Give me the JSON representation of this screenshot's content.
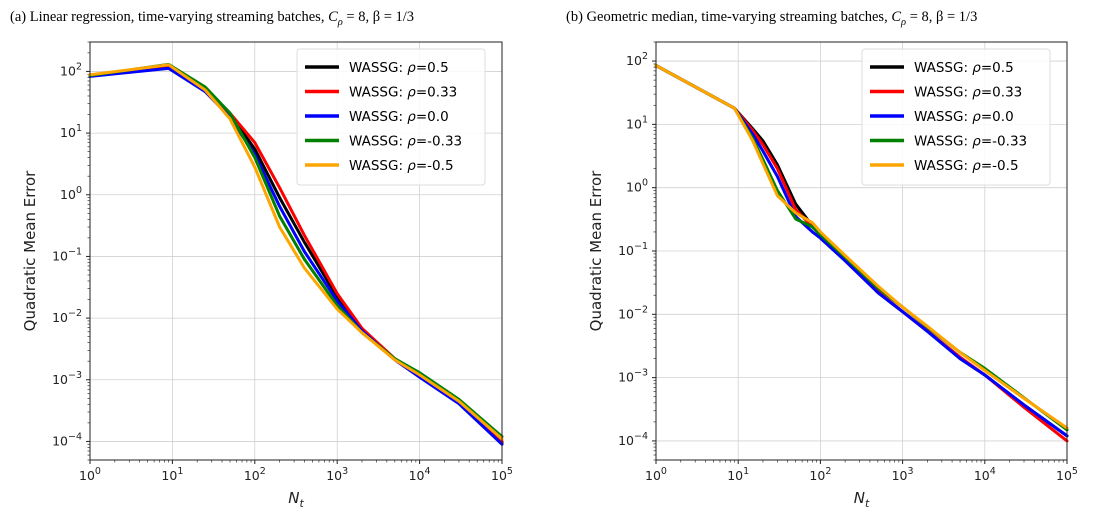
{
  "chart_data": [
    {
      "type": "line",
      "title": "(a) Linear regression, time-varying streaming batches, C_ρ = 8, β = 1/3",
      "xlabel": "N_t",
      "ylabel": "Quadratic Mean Error",
      "xscale": "log",
      "yscale": "log",
      "xlim": [
        1,
        100000
      ],
      "ylim": [
        5e-05,
        300
      ],
      "xticks": [
        "10^0",
        "10^1",
        "10^2",
        "10^3",
        "10^4",
        "10^5"
      ],
      "yticks": [
        "10^-4",
        "10^-3",
        "10^-2",
        "10^-1",
        "10^0",
        "10^1",
        "10^2"
      ],
      "grid": true,
      "legend_position": "upper right",
      "series": [
        {
          "name": "WASSG: ρ=0.5",
          "color": "#000000",
          "x": [
            1,
            9,
            25,
            50,
            100,
            200,
            400,
            1000,
            2000,
            5000,
            10000,
            30000,
            100000
          ],
          "y": [
            85,
            122,
            52,
            20,
            5.5,
            0.9,
            0.17,
            0.022,
            0.0065,
            0.0022,
            0.0012,
            0.00042,
            9.5e-05
          ]
        },
        {
          "name": "WASSG: ρ=0.33",
          "color": "#ff0000",
          "x": [
            1,
            9,
            25,
            50,
            100,
            200,
            400,
            1000,
            2000,
            5000,
            10000,
            30000,
            100000
          ],
          "y": [
            87,
            125,
            53,
            21,
            7.0,
            1.3,
            0.22,
            0.025,
            0.0068,
            0.0022,
            0.0012,
            0.00043,
            0.0001
          ]
        },
        {
          "name": "WASSG: ρ=0.0",
          "color": "#0000ff",
          "x": [
            1,
            9,
            25,
            50,
            100,
            200,
            400,
            1000,
            2000,
            5000,
            10000,
            30000,
            100000
          ],
          "y": [
            83,
            112,
            47,
            18,
            4.5,
            0.65,
            0.12,
            0.019,
            0.0062,
            0.0021,
            0.0011,
            0.00041,
            9e-05
          ]
        },
        {
          "name": "WASSG: ρ=-0.33",
          "color": "#008000",
          "x": [
            1,
            9,
            25,
            50,
            100,
            200,
            400,
            1000,
            2000,
            5000,
            10000,
            30000,
            100000
          ],
          "y": [
            86,
            130,
            56,
            21,
            4.0,
            0.45,
            0.09,
            0.016,
            0.0058,
            0.0022,
            0.0013,
            0.00048,
            0.00012
          ]
        },
        {
          "name": "WASSG: ρ=-0.5",
          "color": "#ffa500",
          "x": [
            1,
            9,
            25,
            50,
            100,
            200,
            400,
            1000,
            2000,
            5000,
            10000,
            30000,
            100000
          ],
          "y": [
            88,
            128,
            50,
            17,
            2.8,
            0.3,
            0.065,
            0.014,
            0.0058,
            0.0021,
            0.0012,
            0.00045,
            0.00011
          ]
        }
      ]
    },
    {
      "type": "line",
      "title": "(b) Geometric median, time-varying streaming batches, C_ρ = 8, β = 1/3",
      "xlabel": "N_t",
      "ylabel": "Quadratic Mean Error",
      "xscale": "log",
      "yscale": "log",
      "xlim": [
        1,
        100000
      ],
      "ylim": [
        5e-05,
        200
      ],
      "xticks": [
        "10^0",
        "10^1",
        "10^2",
        "10^3",
        "10^4",
        "10^5"
      ],
      "yticks": [
        "10^-4",
        "10^-3",
        "10^-2",
        "10^-1",
        "10^0",
        "10^1",
        "10^2"
      ],
      "grid": true,
      "legend_position": "upper right",
      "series": [
        {
          "name": "WASSG: ρ=0.5",
          "color": "#000000",
          "x": [
            1,
            9,
            15,
            20,
            30,
            50,
            80,
            100,
            200,
            500,
            1000,
            2000,
            5000,
            10000,
            30000,
            100000
          ],
          "y": [
            85,
            18,
            8.5,
            5.5,
            2.3,
            0.55,
            0.25,
            0.19,
            0.075,
            0.022,
            0.011,
            0.0055,
            0.002,
            0.0011,
            0.00037,
            0.00012
          ]
        },
        {
          "name": "WASSG: ρ=0.33",
          "color": "#ff0000",
          "x": [
            1,
            9,
            15,
            20,
            30,
            50,
            80,
            100,
            200,
            500,
            1000,
            2000,
            5000,
            10000,
            30000,
            100000
          ],
          "y": [
            85,
            18,
            8.0,
            4.8,
            2.0,
            0.45,
            0.24,
            0.18,
            0.075,
            0.023,
            0.011,
            0.0055,
            0.0021,
            0.0011,
            0.00034,
            0.0001
          ]
        },
        {
          "name": "WASSG: ρ=0.0",
          "color": "#0000ff",
          "x": [
            1,
            9,
            15,
            20,
            30,
            50,
            80,
            100,
            200,
            500,
            1000,
            2000,
            5000,
            10000,
            30000,
            100000
          ],
          "y": [
            85,
            18,
            7.0,
            3.8,
            1.5,
            0.35,
            0.2,
            0.16,
            0.07,
            0.022,
            0.011,
            0.0054,
            0.002,
            0.0011,
            0.00037,
            0.00012
          ]
        },
        {
          "name": "WASSG: ρ=-0.33",
          "color": "#008000",
          "x": [
            1,
            9,
            15,
            20,
            30,
            50,
            80,
            100,
            200,
            500,
            1000,
            2000,
            5000,
            10000,
            30000,
            100000
          ],
          "y": [
            85,
            18,
            6.0,
            2.8,
            0.9,
            0.32,
            0.24,
            0.18,
            0.08,
            0.026,
            0.013,
            0.0063,
            0.0025,
            0.0014,
            0.00048,
            0.00015
          ]
        },
        {
          "name": "WASSG: ρ=-0.5",
          "color": "#ffa500",
          "x": [
            1,
            9,
            15,
            20,
            30,
            50,
            80,
            100,
            200,
            500,
            1000,
            2000,
            5000,
            10000,
            30000,
            100000
          ],
          "y": [
            85,
            18,
            5.5,
            2.4,
            0.75,
            0.4,
            0.28,
            0.2,
            0.085,
            0.028,
            0.013,
            0.0065,
            0.0025,
            0.0013,
            0.00047,
            0.00016
          ]
        }
      ]
    }
  ]
}
